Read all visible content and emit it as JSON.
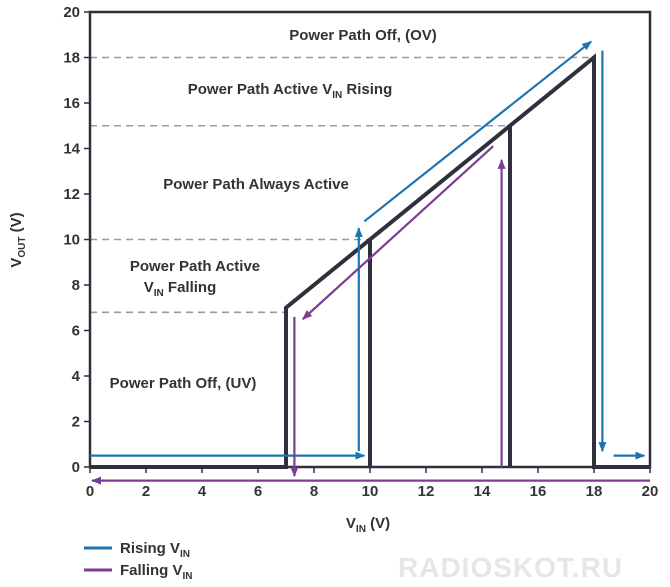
{
  "chart_data": {
    "type": "line",
    "xlim": [
      0,
      20
    ],
    "ylim": [
      0,
      20
    ],
    "x_ticks": [
      0,
      2,
      4,
      6,
      8,
      10,
      12,
      14,
      16,
      18,
      20
    ],
    "y_ticks": [
      0,
      2,
      4,
      6,
      8,
      10,
      12,
      14,
      16,
      18,
      20
    ],
    "xlabel": {
      "main": "V",
      "sub": "IN",
      "unit": " (V)"
    },
    "ylabel": {
      "main": "V",
      "sub": "OUT",
      "unit": " (V)"
    },
    "thresholds": [
      6.8,
      10,
      15,
      18
    ],
    "transfer_curve": {
      "x": [
        0,
        7,
        7,
        10,
        10,
        10,
        15,
        15,
        15,
        18,
        18,
        20
      ],
      "y": [
        0,
        0,
        7,
        10,
        0,
        10,
        15,
        0,
        15,
        18,
        0,
        0
      ]
    },
    "regions": [
      {
        "id": "ov",
        "main": "Power Path Off, (OV)"
      },
      {
        "id": "active-rising",
        "main": "Power Path Active V",
        "sub": "IN",
        "rest": " Rising"
      },
      {
        "id": "always-active",
        "main": "Power Path Always Active"
      },
      {
        "id": "active-falling-1",
        "main": "Power Path Active"
      },
      {
        "id": "active-falling-2",
        "main": "V",
        "sub": "IN",
        "rest": " Falling"
      },
      {
        "id": "uv",
        "main": "Power Path Off, (UV)"
      }
    ],
    "series": [
      {
        "name": "Rising V",
        "name_sub": "IN",
        "color": "#1c75b0"
      },
      {
        "name": "Falling V",
        "name_sub": "IN",
        "color": "#7b3e94"
      }
    ],
    "legend_position": "bottom-left",
    "curve_color": "#2f2f3e",
    "grid": false
  },
  "watermark": "RADIOSKOT.RU"
}
